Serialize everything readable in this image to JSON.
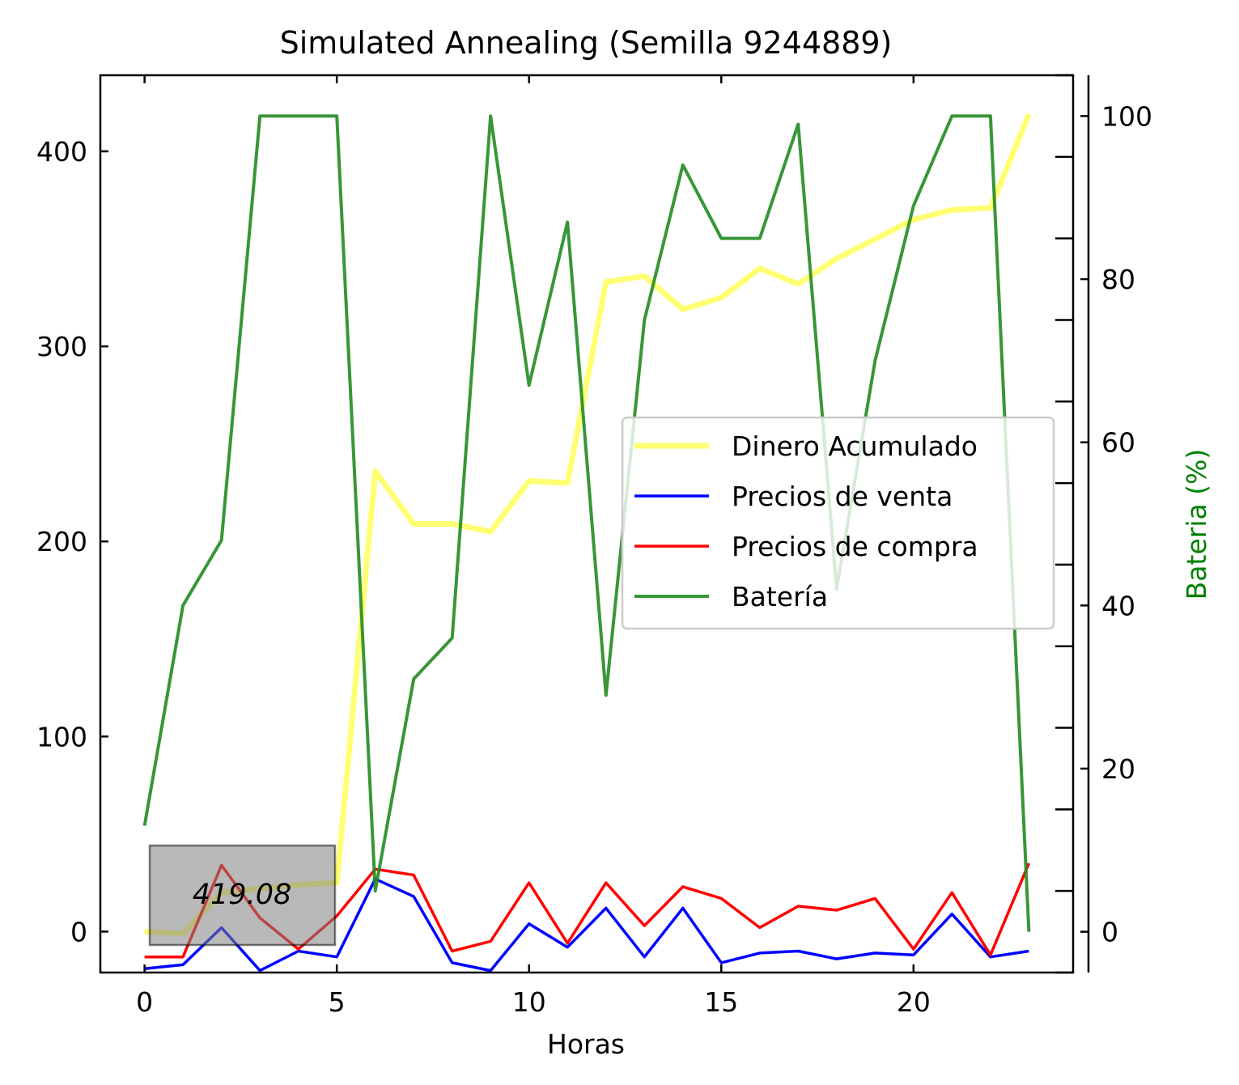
{
  "chart_data": {
    "type": "line",
    "title": "Simulated Annealing (Semilla 9244889)",
    "xlabel": "Horas",
    "ylabel": "",
    "ylabel_right": "Bateria (%)",
    "x": [
      0,
      1,
      2,
      3,
      4,
      5,
      6,
      7,
      8,
      9,
      10,
      11,
      12,
      13,
      14,
      15,
      16,
      17,
      18,
      19,
      20,
      21,
      22,
      23
    ],
    "xlim": [
      -1.15,
      24.15
    ],
    "ylim": [
      -21,
      439
    ],
    "ylim_right": [
      -5,
      105
    ],
    "x_ticks": [
      0,
      5,
      10,
      15,
      20
    ],
    "y_ticks": [
      0,
      100,
      200,
      300,
      400
    ],
    "y_ticks_right": [
      0,
      20,
      40,
      60,
      80,
      100
    ],
    "series": [
      {
        "name": "Dinero Acumulado",
        "axis": "left",
        "color": "#ffff00",
        "values": [
          0,
          -1,
          20,
          22,
          24,
          25,
          236,
          209,
          209,
          205,
          231,
          230,
          333,
          336,
          319,
          325,
          340,
          332,
          345,
          355,
          365,
          370,
          371,
          419
        ]
      },
      {
        "name": "Precios de venta",
        "axis": "left",
        "color": "#0000ff",
        "values": [
          -19,
          -17,
          2,
          -20,
          -10,
          -13,
          27,
          18,
          -16,
          -20,
          4,
          -8,
          12,
          -13,
          12,
          -16,
          -11,
          -10,
          -14,
          -11,
          -12,
          9,
          -13,
          -10
        ]
      },
      {
        "name": "Precios de compra",
        "axis": "left",
        "color": "#ff0000",
        "values": [
          -13,
          -13,
          34,
          7,
          -9,
          8,
          32,
          29,
          -10,
          -5,
          25,
          -6,
          25,
          3,
          23,
          17,
          2,
          13,
          11,
          17,
          -9,
          20,
          -12,
          35
        ]
      },
      {
        "name": "Batería",
        "axis": "right",
        "color": "#228B22",
        "values": [
          13,
          40,
          48,
          100,
          100,
          100,
          5,
          31,
          36,
          100,
          67,
          87,
          29,
          75,
          94,
          85,
          85,
          99,
          42,
          70,
          89,
          100,
          100,
          0
        ]
      }
    ],
    "legend": {
      "placement": "center-right"
    },
    "annotation": {
      "text": "419.08"
    },
    "grid": false
  }
}
